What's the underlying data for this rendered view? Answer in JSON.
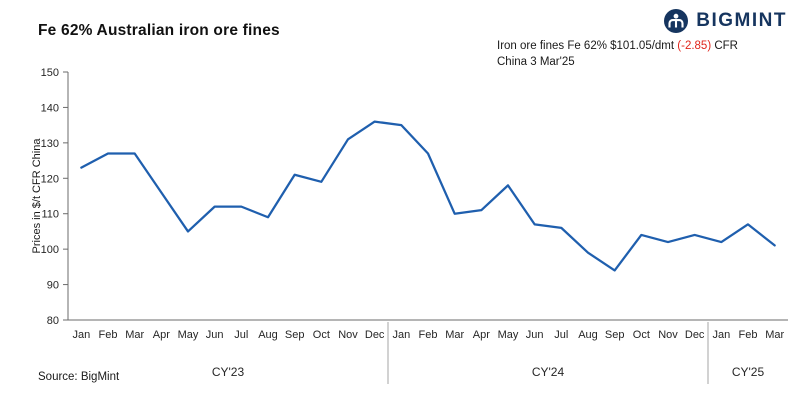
{
  "header": {
    "title": "Fe 62% Australian iron ore fines",
    "logo_text": "BIGMINT",
    "annotation": {
      "line1_prefix": "Iron ore fines Fe 62%  $101.05/dmt  ",
      "line1_change": "(-2.85)",
      "line1_suffix": " CFR",
      "line2": "China 3 Mar'25"
    }
  },
  "footer": {
    "source": "Source: BigMint"
  },
  "colors": {
    "line": "#1f5fae",
    "negative": "#e0251b",
    "brand_navy": "#16355f"
  },
  "chart_data": {
    "type": "line",
    "title": "Fe 62% Australian iron ore fines",
    "ylabel": "Prices in $/t CFR China",
    "ylim": [
      80,
      150
    ],
    "yticks": [
      80,
      90,
      100,
      110,
      120,
      130,
      140,
      150
    ],
    "line_color": "#1f5fae",
    "grid": false,
    "legend": "none",
    "groups": [
      {
        "label": "CY'23",
        "months": [
          "Jan",
          "Feb",
          "Mar",
          "Apr",
          "May",
          "Jun",
          "Jul",
          "Aug",
          "Sep",
          "Oct",
          "Nov",
          "Dec"
        ],
        "values": [
          123,
          127,
          127,
          116,
          105,
          112,
          112,
          109,
          121,
          119,
          131,
          136
        ]
      },
      {
        "label": "CY'24",
        "months": [
          "Jan",
          "Feb",
          "Mar",
          "Apr",
          "May",
          "Jun",
          "Jul",
          "Aug",
          "Sep",
          "Oct",
          "Nov",
          "Dec"
        ],
        "values": [
          135,
          127,
          110,
          111,
          118,
          107,
          106,
          99,
          94,
          104,
          102,
          104
        ]
      },
      {
        "label": "CY'25",
        "months": [
          "Jan",
          "Feb",
          "Mar"
        ],
        "values": [
          102,
          107,
          101.05
        ]
      }
    ]
  }
}
